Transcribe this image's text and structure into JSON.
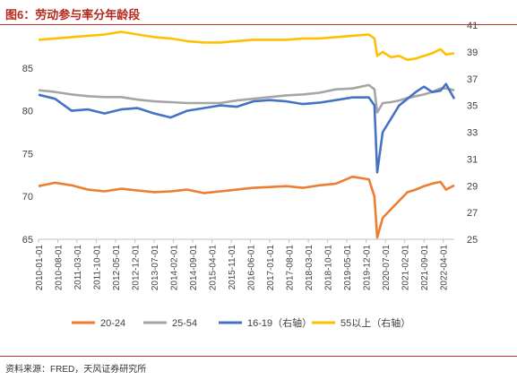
{
  "header": {
    "title": "图6：劳动参与率分年龄段"
  },
  "footer": {
    "source": "资料来源：FRED，天风证券研究所"
  },
  "chart_data": {
    "type": "line",
    "left_axis": {
      "ylim": [
        65,
        90
      ],
      "ticks": [
        65,
        70,
        75,
        80,
        85
      ]
    },
    "right_axis": {
      "ylim": [
        25,
        41
      ],
      "ticks": [
        25,
        27,
        29,
        31,
        33,
        35,
        37,
        39,
        41
      ]
    },
    "x_tick_labels": [
      "2010-01-01",
      "2010-08-01",
      "2011-03-01",
      "2011-10-01",
      "2012-05-01",
      "2012-12-01",
      "2013-07-01",
      "2014-02-01",
      "2014-09-01",
      "2015-04-01",
      "2015-11-01",
      "2016-06-01",
      "2017-01-01",
      "2017-08-01",
      "2018-03-01",
      "2018-10-01",
      "2019-05-01",
      "2019-12-01",
      "2020-07-01",
      "2021-02-01",
      "2021-09-01",
      "2022-04-01"
    ],
    "x_range": [
      "2010-01",
      "2022-08"
    ],
    "legend_position": "bottom",
    "series": [
      {
        "name": "20-24",
        "axis": "left",
        "color": "#ED7D31",
        "points": [
          [
            "2010-01",
            71.2
          ],
          [
            "2010-07",
            71.6
          ],
          [
            "2011-01",
            71.3
          ],
          [
            "2011-07",
            70.8
          ],
          [
            "2012-01",
            70.6
          ],
          [
            "2012-07",
            70.9
          ],
          [
            "2013-01",
            70.7
          ],
          [
            "2013-07",
            70.5
          ],
          [
            "2014-01",
            70.6
          ],
          [
            "2014-07",
            70.8
          ],
          [
            "2015-01",
            70.4
          ],
          [
            "2015-07",
            70.6
          ],
          [
            "2016-01",
            70.8
          ],
          [
            "2016-07",
            71.0
          ],
          [
            "2017-01",
            71.1
          ],
          [
            "2017-07",
            71.2
          ],
          [
            "2018-01",
            71.0
          ],
          [
            "2018-07",
            71.3
          ],
          [
            "2019-01",
            71.5
          ],
          [
            "2019-07",
            72.3
          ],
          [
            "2020-01",
            72.0
          ],
          [
            "2020-03",
            70.0
          ],
          [
            "2020-04",
            65.2
          ],
          [
            "2020-06",
            67.5
          ],
          [
            "2020-09",
            68.5
          ],
          [
            "2020-12",
            69.5
          ],
          [
            "2021-03",
            70.5
          ],
          [
            "2021-06",
            70.8
          ],
          [
            "2021-09",
            71.2
          ],
          [
            "2021-12",
            71.5
          ],
          [
            "2022-03",
            71.7
          ],
          [
            "2022-05",
            70.8
          ],
          [
            "2022-08",
            71.3
          ]
        ]
      },
      {
        "name": "25-54",
        "axis": "left",
        "color": "#A5A5A5",
        "points": [
          [
            "2010-01",
            82.4
          ],
          [
            "2010-07",
            82.2
          ],
          [
            "2011-01",
            81.9
          ],
          [
            "2011-07",
            81.7
          ],
          [
            "2012-01",
            81.6
          ],
          [
            "2012-07",
            81.6
          ],
          [
            "2013-01",
            81.3
          ],
          [
            "2013-07",
            81.1
          ],
          [
            "2014-01",
            81.0
          ],
          [
            "2014-07",
            80.9
          ],
          [
            "2015-01",
            80.9
          ],
          [
            "2015-07",
            80.9
          ],
          [
            "2016-01",
            81.2
          ],
          [
            "2016-07",
            81.4
          ],
          [
            "2017-01",
            81.6
          ],
          [
            "2017-07",
            81.8
          ],
          [
            "2018-01",
            81.9
          ],
          [
            "2018-07",
            82.1
          ],
          [
            "2019-01",
            82.5
          ],
          [
            "2019-07",
            82.6
          ],
          [
            "2020-01",
            83.0
          ],
          [
            "2020-03",
            82.5
          ],
          [
            "2020-04",
            79.8
          ],
          [
            "2020-06",
            80.9
          ],
          [
            "2020-09",
            81.0
          ],
          [
            "2020-12",
            81.2
          ],
          [
            "2021-03",
            81.5
          ],
          [
            "2021-06",
            81.7
          ],
          [
            "2021-09",
            81.9
          ],
          [
            "2021-12",
            82.2
          ],
          [
            "2022-03",
            82.6
          ],
          [
            "2022-05",
            82.6
          ],
          [
            "2022-08",
            82.4
          ]
        ]
      },
      {
        "name": "16-19（右轴）",
        "axis": "right",
        "color": "#4472C4",
        "points": [
          [
            "2010-01",
            35.8
          ],
          [
            "2010-07",
            35.5
          ],
          [
            "2011-01",
            34.6
          ],
          [
            "2011-07",
            34.7
          ],
          [
            "2012-01",
            34.4
          ],
          [
            "2012-07",
            34.7
          ],
          [
            "2013-01",
            34.8
          ],
          [
            "2013-07",
            34.4
          ],
          [
            "2014-01",
            34.1
          ],
          [
            "2014-07",
            34.6
          ],
          [
            "2015-01",
            34.8
          ],
          [
            "2015-07",
            35.0
          ],
          [
            "2016-01",
            34.9
          ],
          [
            "2016-07",
            35.3
          ],
          [
            "2017-01",
            35.4
          ],
          [
            "2017-07",
            35.3
          ],
          [
            "2018-01",
            35.1
          ],
          [
            "2018-07",
            35.2
          ],
          [
            "2019-01",
            35.4
          ],
          [
            "2019-07",
            35.6
          ],
          [
            "2020-01",
            35.6
          ],
          [
            "2020-03",
            35.0
          ],
          [
            "2020-04",
            30.0
          ],
          [
            "2020-06",
            33.0
          ],
          [
            "2020-09",
            34.0
          ],
          [
            "2020-12",
            35.0
          ],
          [
            "2021-03",
            35.5
          ],
          [
            "2021-06",
            36.0
          ],
          [
            "2021-09",
            36.4
          ],
          [
            "2021-12",
            36.0
          ],
          [
            "2022-03",
            36.1
          ],
          [
            "2022-05",
            36.6
          ],
          [
            "2022-08",
            35.5
          ]
        ]
      },
      {
        "name": "55以上（右轴）",
        "axis": "right",
        "color": "#FFC000",
        "points": [
          [
            "2010-01",
            39.9
          ],
          [
            "2010-07",
            40.0
          ],
          [
            "2011-01",
            40.1
          ],
          [
            "2011-07",
            40.2
          ],
          [
            "2012-01",
            40.3
          ],
          [
            "2012-07",
            40.5
          ],
          [
            "2013-01",
            40.3
          ],
          [
            "2013-07",
            40.1
          ],
          [
            "2014-01",
            40.0
          ],
          [
            "2014-07",
            39.8
          ],
          [
            "2015-01",
            39.7
          ],
          [
            "2015-07",
            39.7
          ],
          [
            "2016-01",
            39.8
          ],
          [
            "2016-07",
            39.9
          ],
          [
            "2017-01",
            39.9
          ],
          [
            "2017-07",
            39.9
          ],
          [
            "2018-01",
            40.0
          ],
          [
            "2018-07",
            40.0
          ],
          [
            "2019-01",
            40.1
          ],
          [
            "2019-07",
            40.2
          ],
          [
            "2020-01",
            40.3
          ],
          [
            "2020-03",
            40.0
          ],
          [
            "2020-04",
            38.7
          ],
          [
            "2020-06",
            39.0
          ],
          [
            "2020-09",
            38.6
          ],
          [
            "2020-12",
            38.7
          ],
          [
            "2021-03",
            38.4
          ],
          [
            "2021-06",
            38.5
          ],
          [
            "2021-09",
            38.7
          ],
          [
            "2021-12",
            38.9
          ],
          [
            "2022-03",
            39.2
          ],
          [
            "2022-05",
            38.8
          ],
          [
            "2022-08",
            38.9
          ]
        ]
      }
    ]
  }
}
